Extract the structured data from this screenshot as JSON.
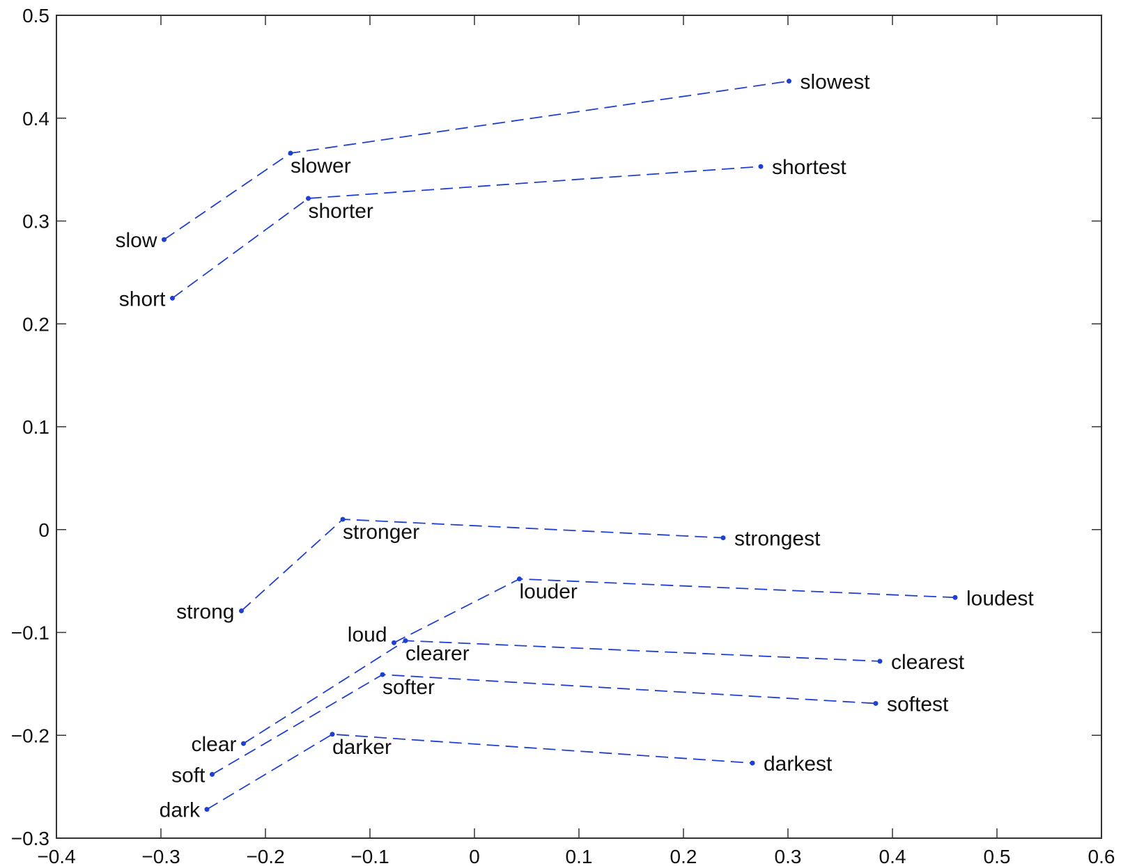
{
  "chart_data": {
    "type": "line",
    "line_style": "dashed",
    "marker": "dot",
    "grid": false,
    "title": "",
    "xlabel": "",
    "ylabel": "",
    "xlim": [
      -0.4,
      0.6
    ],
    "ylim": [
      -0.3,
      0.5
    ],
    "xticks": [
      -0.4,
      -0.3,
      -0.2,
      -0.1,
      0,
      0.1,
      0.2,
      0.3,
      0.4,
      0.5,
      0.6
    ],
    "xtick_labels": [
      "−0.4",
      "−0.3",
      "−0.2",
      "−0.1",
      "0",
      "0.1",
      "0.2",
      "0.3",
      "0.4",
      "0.5",
      "0.6"
    ],
    "yticks": [
      -0.3,
      -0.2,
      -0.1,
      0,
      0.1,
      0.2,
      0.3,
      0.4,
      0.5
    ],
    "ytick_labels": [
      "−0.3",
      "−0.2",
      "−0.1",
      "0",
      "0.1",
      "0.2",
      "0.3",
      "0.4",
      "0.5"
    ],
    "color": "#1f3fd0",
    "series": [
      {
        "points": [
          {
            "label": "slow",
            "x": -0.297,
            "y": 0.282,
            "label_side": "left"
          },
          {
            "label": "slower",
            "x": -0.176,
            "y": 0.366,
            "label_side": "below"
          },
          {
            "label": "slowest",
            "x": 0.301,
            "y": 0.436,
            "label_side": "right"
          }
        ]
      },
      {
        "points": [
          {
            "label": "short",
            "x": -0.289,
            "y": 0.225,
            "label_side": "left"
          },
          {
            "label": "shorter",
            "x": -0.159,
            "y": 0.322,
            "label_side": "below"
          },
          {
            "label": "shortest",
            "x": 0.274,
            "y": 0.353,
            "label_side": "right"
          }
        ]
      },
      {
        "points": [
          {
            "label": "strong",
            "x": -0.223,
            "y": -0.079,
            "label_side": "left"
          },
          {
            "label": "stronger",
            "x": -0.126,
            "y": 0.01,
            "label_side": "below"
          },
          {
            "label": "strongest",
            "x": 0.238,
            "y": -0.008,
            "label_side": "right"
          }
        ]
      },
      {
        "points": [
          {
            "label": "loud",
            "x": -0.077,
            "y": -0.11,
            "label_side": "left-up"
          },
          {
            "label": "louder",
            "x": 0.043,
            "y": -0.048,
            "label_side": "below"
          },
          {
            "label": "loudest",
            "x": 0.46,
            "y": -0.066,
            "label_side": "right"
          }
        ]
      },
      {
        "points": [
          {
            "label": "clear",
            "x": -0.221,
            "y": -0.208,
            "label_side": "left"
          },
          {
            "label": "clearer",
            "x": -0.066,
            "y": -0.108,
            "label_side": "below"
          },
          {
            "label": "clearest",
            "x": 0.388,
            "y": -0.128,
            "label_side": "right"
          }
        ]
      },
      {
        "points": [
          {
            "label": "soft",
            "x": -0.251,
            "y": -0.238,
            "label_side": "left"
          },
          {
            "label": "softer",
            "x": -0.088,
            "y": -0.141,
            "label_side": "below"
          },
          {
            "label": "softest",
            "x": 0.384,
            "y": -0.169,
            "label_side": "right"
          }
        ]
      },
      {
        "points": [
          {
            "label": "dark",
            "x": -0.256,
            "y": -0.272,
            "label_side": "left"
          },
          {
            "label": "darker",
            "x": -0.136,
            "y": -0.199,
            "label_side": "below"
          },
          {
            "label": "darkest",
            "x": 0.266,
            "y": -0.227,
            "label_side": "right"
          }
        ]
      }
    ]
  }
}
